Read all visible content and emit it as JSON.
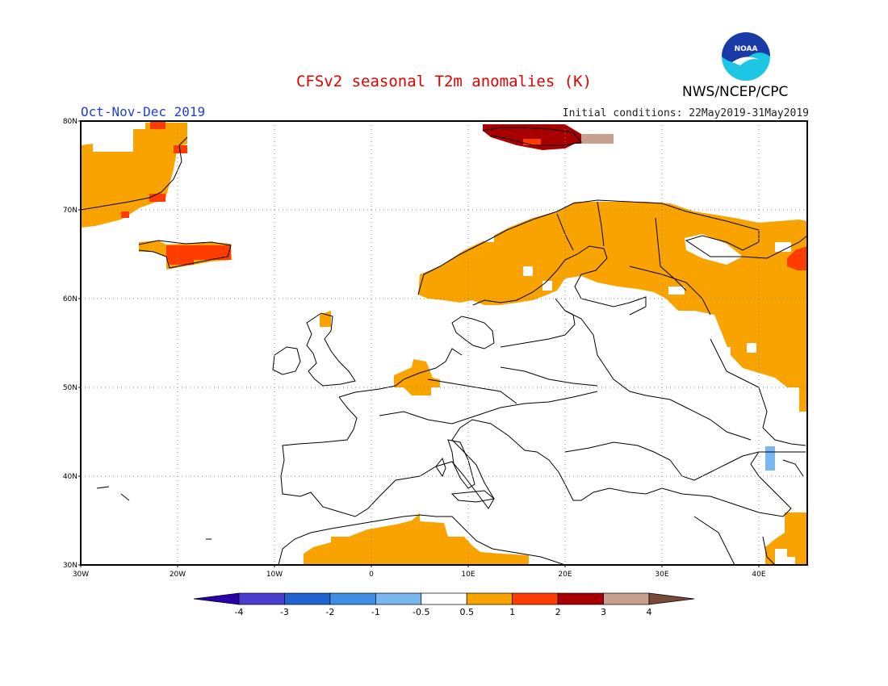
{
  "header": {
    "title": "CFSv2 seasonal T2m anomalies (K)",
    "agency": "NWS/NCEP/CPC",
    "logo_text": "NOAA",
    "season": "Oct-Nov-Dec 2019",
    "initial_conditions": "Initial conditions: 22May2019-31May2019"
  },
  "map": {
    "lon_range": [
      -30,
      45
    ],
    "lat_range": [
      30,
      80
    ],
    "lat_labels": [
      "30N",
      "40N",
      "50N",
      "60N",
      "70N",
      "80N"
    ],
    "lon_labels": [
      "30W",
      "20W",
      "10W",
      "0",
      "10E",
      "20E",
      "30E",
      "40E"
    ],
    "grid": true,
    "anomaly_regions": [
      {
        "region": "Greenland east coast",
        "anomaly_class": "0.5-1"
      },
      {
        "region": "Iceland",
        "anomaly_class": "1-2"
      },
      {
        "region": "Svalbard",
        "anomaly_class": "2-3"
      },
      {
        "region": "Scandinavia",
        "anomaly_class": "0.5-1"
      },
      {
        "region": "NW Russia",
        "anomaly_class": "0.5-1"
      },
      {
        "region": "Benelux",
        "anomaly_class": "0.5-1"
      },
      {
        "region": "North Africa",
        "anomaly_class": "0.5-1"
      },
      {
        "region": "Caucasus",
        "anomaly_class": "-1--0.5"
      },
      {
        "region": "Middle East",
        "anomaly_class": "0.5-1"
      }
    ]
  },
  "colorbar": {
    "labels": [
      "-4",
      "-3",
      "-2",
      "-1",
      "-0.5",
      "0.5",
      "1",
      "2",
      "3",
      "4"
    ],
    "colors": [
      "#2a00a8",
      "#4a3ed0",
      "#1f63d0",
      "#3f8ee6",
      "#7ab6f0",
      "#ffffff",
      "#f9a300",
      "#ff3c00",
      "#a80000",
      "#c9a08f",
      "#7a4a38"
    ]
  }
}
